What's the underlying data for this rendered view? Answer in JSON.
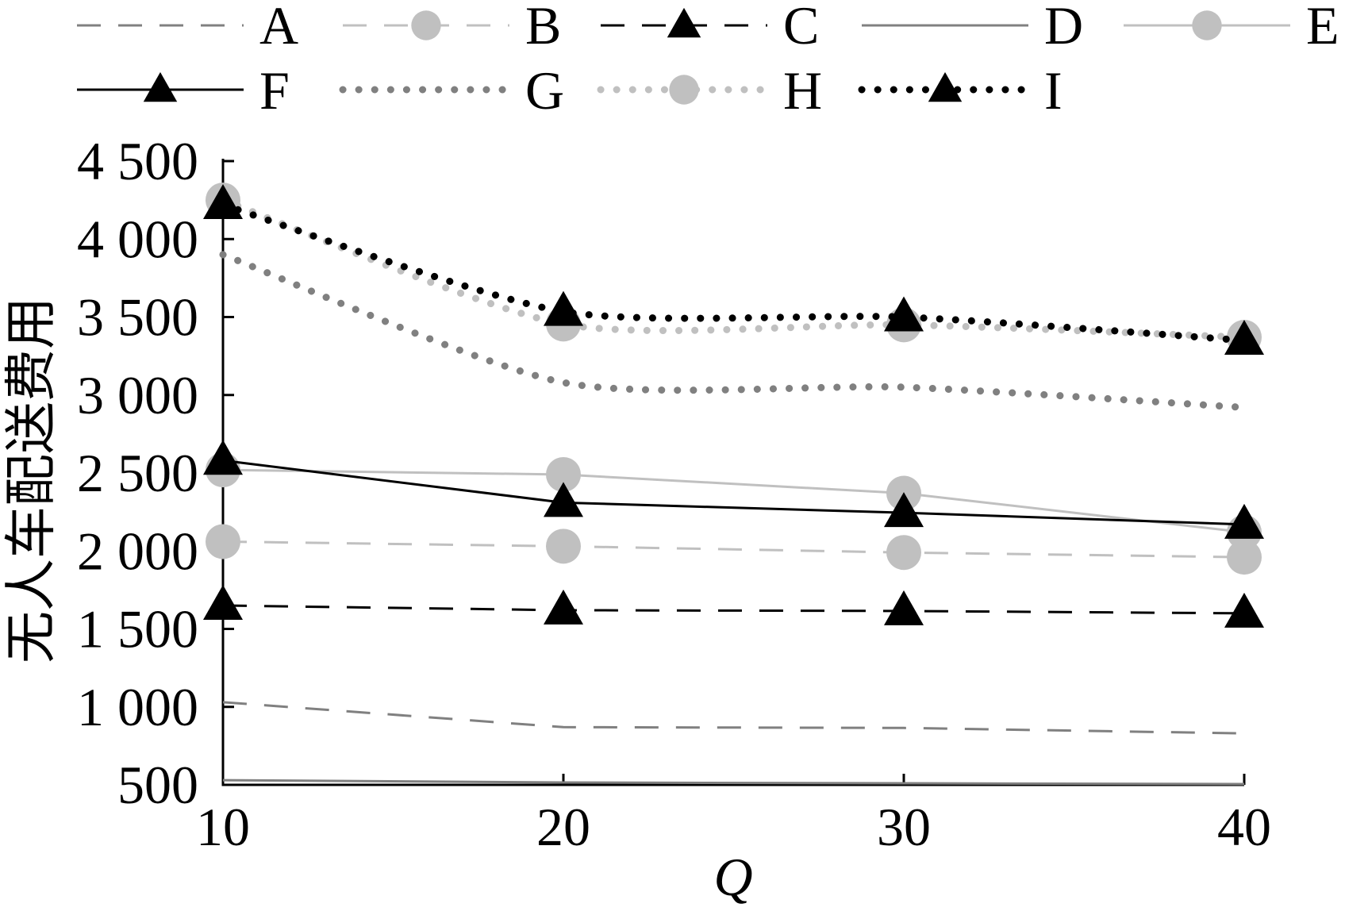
{
  "chart_data": {
    "type": "line",
    "x": [
      10,
      20,
      30,
      40
    ],
    "xtick_labels": [
      "10",
      "20",
      "30",
      "40"
    ],
    "xlabel": "Q",
    "ylabel": "无人车配送费用",
    "ylim": [
      500,
      4500
    ],
    "yticks": [
      500,
      1000,
      1500,
      2000,
      2500,
      3000,
      3500,
      4000,
      4500
    ],
    "ytick_labels": [
      "500",
      "1 000",
      "1 500",
      "2 000",
      "2 500",
      "3 000",
      "3 500",
      "4 000",
      "4 500"
    ],
    "grid": false,
    "legend": "top",
    "series": [
      {
        "name": "A",
        "values": [
          1030,
          870,
          865,
          830
        ],
        "color": "#808080",
        "line": "dashed",
        "marker": "none",
        "smooth": false
      },
      {
        "name": "B",
        "values": [
          2060,
          2030,
          1990,
          1960
        ],
        "color": "#c0c0c0",
        "line": "dashed",
        "marker": "circle",
        "smooth": false
      },
      {
        "name": "C",
        "values": [
          1650,
          1620,
          1615,
          1600
        ],
        "color": "#000000",
        "line": "dashed",
        "marker": "triangle",
        "smooth": false
      },
      {
        "name": "D",
        "values": [
          530,
          515,
          510,
          505
        ],
        "color": "#808080",
        "line": "solid",
        "marker": "none",
        "smooth": false
      },
      {
        "name": "E",
        "values": [
          2520,
          2490,
          2370,
          2120
        ],
        "color": "#c0c0c0",
        "line": "solid",
        "marker": "circle",
        "smooth": false
      },
      {
        "name": "F",
        "values": [
          2580,
          2310,
          2245,
          2170
        ],
        "color": "#000000",
        "line": "solid",
        "marker": "triangle",
        "smooth": false
      },
      {
        "name": "G",
        "values": [
          3900,
          3080,
          3050,
          2920
        ],
        "color": "#808080",
        "line": "dotted",
        "marker": "none",
        "smooth": true
      },
      {
        "name": "H",
        "values": [
          4250,
          3455,
          3450,
          3370
        ],
        "color": "#c0c0c0",
        "line": "dotted",
        "marker": "circle",
        "smooth": true
      },
      {
        "name": "I",
        "values": [
          4220,
          3535,
          3500,
          3350
        ],
        "color": "#000000",
        "line": "dotted",
        "marker": "triangle",
        "smooth": true
      }
    ]
  }
}
